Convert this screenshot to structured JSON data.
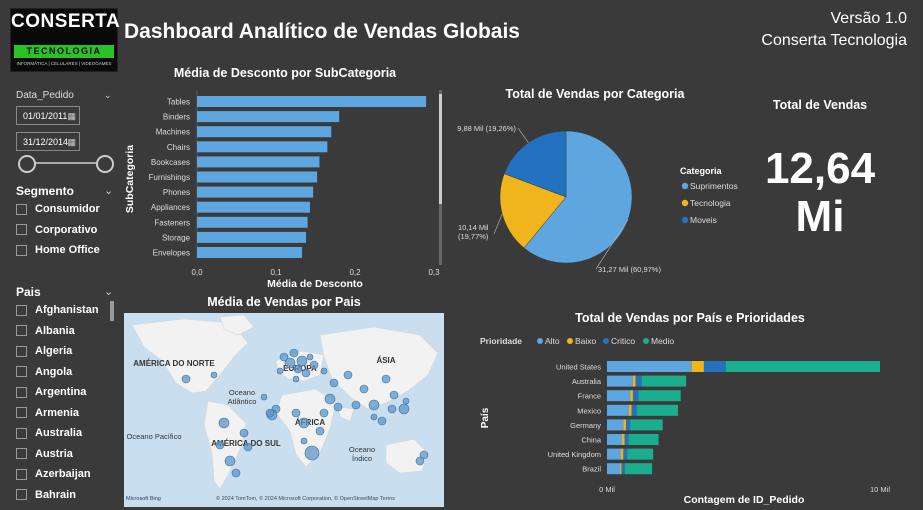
{
  "header": {
    "logo_line1": "CONSERTA",
    "logo_line2": "TECNOLOGIA",
    "logo_line3": "INFORMÁTICA | CELULARES | VIDEOGAMES",
    "title": "Dashboard Analítico de Vendas Globais",
    "version": "Versão 1.0",
    "company": "Conserta Tecnologia"
  },
  "filters": {
    "date_label": "Data_Pedido",
    "date_start": "01/01/2011",
    "date_end": "31/12/2014",
    "segment_label": "Segmento",
    "segments": [
      "Consumidor",
      "Corporativo",
      "Home Office"
    ],
    "country_label": "Pais",
    "countries": [
      "Afghanistan",
      "Albania",
      "Algeria",
      "Angola",
      "Argentina",
      "Armenia",
      "Australia",
      "Austria",
      "Azerbaijan",
      "Bahrain"
    ]
  },
  "kpi": {
    "title": "Total de Vendas",
    "value_line1": "12,64",
    "value_line2": "Mi"
  },
  "map": {
    "title": "Média de Vendas por Pais",
    "labels": [
      "AMÉRICA DO NORTE",
      "EUROPA",
      "ÁSIA",
      "Oceano",
      "Atlântico",
      "Oceano Pacífico",
      "AMÉRICA DO SUL",
      "ÁFRICA",
      "Oceano",
      "Índico"
    ],
    "brand": "Microsoft Bing",
    "copyright": "© 2024 TomTom, © 2024 Microsoft Corporation, © OpenStreetMap  Terms"
  },
  "colors": {
    "blue": "#5ea6df",
    "yellow": "#f0b41c",
    "navy": "#2372bf",
    "teal": "#1bae8e",
    "map_bg": "#c9dff0",
    "land": "#f2f2f2"
  },
  "chart_data": [
    {
      "type": "bar",
      "title": "Média de Desconto por SubCategoria",
      "xlabel": "Média de Desconto",
      "ylabel": "SubCategoria",
      "categories": [
        "Tables",
        "Binders",
        "Machines",
        "Chairs",
        "Bookcases",
        "Furnishings",
        "Phones",
        "Appliances",
        "Fasteners",
        "Storage",
        "Envelopes"
      ],
      "values": [
        0.29,
        0.18,
        0.17,
        0.165,
        0.155,
        0.152,
        0.147,
        0.143,
        0.14,
        0.138,
        0.133
      ],
      "xlim": [
        0,
        0.3
      ],
      "ticks": [
        "0,0",
        "0,1",
        "0,2",
        "0,3"
      ],
      "tick_values": [
        0,
        0.1,
        0.2,
        0.3
      ]
    },
    {
      "type": "pie",
      "title": "Total de Vendas por Categoria",
      "legend_title": "Categoria",
      "slices": [
        {
          "name": "Suprimentos",
          "value": 60.97,
          "label": "31,27 Mil (60,97%)"
        },
        {
          "name": "Tecnologia",
          "value": 19.77,
          "label": "10,14 Mil (19,77%)"
        },
        {
          "name": "Moveis",
          "value": 19.26,
          "label": "9,88 Mil (19,26%)"
        }
      ]
    },
    {
      "type": "bar",
      "title": "Total de Vendas por País e Prioridades",
      "xlabel": "Contagem de ID_Pedido",
      "ylabel": "País",
      "legend_title": "Prioridade",
      "categories": [
        "United States",
        "Australia",
        "France",
        "Mexico",
        "Germany",
        "China",
        "United Kingdom",
        "Brazil"
      ],
      "series": [
        {
          "name": "Alto",
          "values": [
            3100,
            950,
            850,
            800,
            600,
            550,
            500,
            480
          ]
        },
        {
          "name": "Baixo",
          "values": [
            450,
            100,
            100,
            100,
            100,
            100,
            100,
            50
          ]
        },
        {
          "name": "Critico",
          "values": [
            800,
            220,
            200,
            190,
            150,
            140,
            140,
            120
          ]
        },
        {
          "name": "Medio",
          "values": [
            5650,
            1630,
            1550,
            1510,
            1190,
            1100,
            950,
            1000
          ]
        }
      ],
      "xlim": [
        0,
        10000
      ],
      "ticks": [
        "0 Mil",
        "10 Mil"
      ],
      "tick_values": [
        0,
        10000
      ]
    }
  ]
}
